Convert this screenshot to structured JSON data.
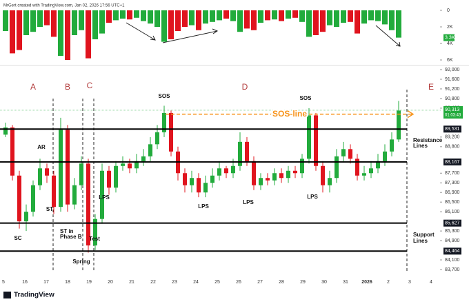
{
  "chart_data": {
    "type": "candlestick",
    "header": "MrGert created with TradingView.com, Jan 02, 2026 17:56 UTC+1",
    "brand": "TradingView",
    "up_color": "#22ab3c",
    "down_color": "#e0141e",
    "open": [
      89300,
      89600,
      87600,
      85700,
      86100,
      87200,
      87900,
      87600,
      86300,
      89500,
      86400,
      87200,
      88100,
      84700,
      85800,
      87800,
      87100,
      88000,
      88100,
      87900,
      88200,
      88400,
      88900,
      89400,
      90200,
      88600,
      87700,
      87200,
      87500,
      86900,
      87300,
      87600,
      87900,
      87700,
      88000,
      89000,
      88200,
      87200,
      87500,
      87400,
      87700,
      87500,
      87800,
      87700,
      88300,
      90100,
      88000,
      87200,
      87500,
      88400,
      88700,
      88300,
      87600,
      87700,
      87900,
      88200,
      88600,
      89100
    ],
    "high": [
      89800,
      89700,
      87800,
      86400,
      87400,
      88300,
      88100,
      87800,
      90000,
      89700,
      87500,
      88400,
      88300,
      86000,
      88100,
      88000,
      88200,
      88400,
      88300,
      88500,
      88700,
      89200,
      89700,
      90500,
      90300,
      88800,
      87900,
      87800,
      87700,
      87600,
      87900,
      88200,
      88000,
      88300,
      89400,
      89200,
      88400,
      87700,
      87700,
      87900,
      87900,
      88000,
      88000,
      88500,
      90400,
      90200,
      88200,
      87800,
      88700,
      89000,
      88900,
      88500,
      88000,
      88200,
      88500,
      88900,
      89400,
      90700
    ],
    "low": [
      89200,
      87400,
      85400,
      85300,
      85900,
      87000,
      87300,
      86000,
      86100,
      86100,
      86200,
      87000,
      84400,
      84500,
      85600,
      86800,
      86900,
      87800,
      87700,
      87700,
      88000,
      88200,
      88700,
      89200,
      88400,
      87400,
      86900,
      86900,
      86700,
      86700,
      87100,
      87400,
      87500,
      87500,
      87800,
      88000,
      87000,
      87000,
      87200,
      87200,
      87300,
      87300,
      87500,
      87500,
      88100,
      87800,
      86900,
      86900,
      87300,
      88200,
      88100,
      87400,
      87400,
      87500,
      87700,
      88000,
      88400,
      89000
    ],
    "close": [
      89600,
      87600,
      85700,
      86100,
      87200,
      87900,
      87600,
      86300,
      89500,
      86400,
      87200,
      88100,
      84700,
      85800,
      87800,
      87100,
      88000,
      88100,
      87900,
      88200,
      88400,
      88900,
      89400,
      90200,
      88600,
      87700,
      87200,
      87500,
      86900,
      87300,
      87600,
      87900,
      87700,
      88000,
      89000,
      88200,
      87200,
      87500,
      87400,
      87700,
      87500,
      87800,
      87700,
      88300,
      90100,
      88000,
      87200,
      87500,
      88400,
      88700,
      88300,
      87600,
      87700,
      87900,
      88200,
      88600,
      89100,
      90300
    ],
    "volume": [
      2500,
      5200,
      4800,
      3000,
      2600,
      2000,
      1800,
      3200,
      5500,
      6000,
      3000,
      2400,
      5800,
      3500,
      2800,
      1500,
      1200,
      1000,
      1100,
      900,
      1300,
      1600,
      2000,
      3800,
      3500,
      2500,
      2000,
      1800,
      2400,
      1600,
      1400,
      1200,
      1000,
      1300,
      2600,
      2200,
      2400,
      1500,
      1200,
      1100,
      1300,
      1000,
      900,
      1400,
      3200,
      3000,
      2600,
      1800,
      2000,
      1500,
      1400,
      2800,
      1600,
      1200,
      1300,
      1700,
      2400,
      3300
    ],
    "volume_ylim": [
      0,
      6000
    ],
    "volume_yticks": [
      0,
      {
        "value": 2000,
        "label": "2K"
      },
      {
        "value": 4000,
        "label": "4K"
      },
      {
        "value": 6000,
        "label": "6K"
      }
    ],
    "volume_last": {
      "value": 3300,
      "label": "3.3K"
    },
    "ylim": [
      83700,
      92000
    ],
    "yticks": [
      {
        "value": 92000,
        "label": "92,000"
      },
      {
        "value": 91600,
        "label": "91,600"
      },
      {
        "value": 91200,
        "label": "91,200"
      },
      {
        "value": 90800,
        "label": "90,800"
      },
      {
        "value": 90400,
        "label": "90,400"
      },
      {
        "value": 89200,
        "label": "89,200"
      },
      {
        "value": 88800,
        "label": "88,800"
      },
      {
        "value": 87700,
        "label": "87,700"
      },
      {
        "value": 87300,
        "label": "87,300"
      },
      {
        "value": 86900,
        "label": "86,900"
      },
      {
        "value": 86500,
        "label": "86,500"
      },
      {
        "value": 86100,
        "label": "86,100"
      },
      {
        "value": 85300,
        "label": "85,300"
      },
      {
        "value": 84900,
        "label": "84,900"
      },
      {
        "value": 84100,
        "label": "84,100"
      },
      {
        "value": 83700,
        "label": "83,700"
      }
    ],
    "last_price": {
      "value": 90313,
      "label": "90,313",
      "countdown": "01:03:43"
    },
    "levels": [
      {
        "value": 89531,
        "label": "89,531"
      },
      {
        "value": 88167,
        "label": "88,167"
      },
      {
        "value": 85627,
        "label": "85,627"
      },
      {
        "value": 84464,
        "label": "84,464"
      }
    ],
    "sos_line": {
      "value": 90150,
      "label": "SOS-line"
    },
    "x_labels": [
      "5",
      "16",
      "17",
      "18",
      "19",
      "20",
      "21",
      "22",
      "23",
      "24",
      "25",
      "26",
      "27",
      "28",
      "29",
      "30",
      "31",
      "2026",
      "2",
      "3",
      "4"
    ],
    "phases": [
      "A",
      "B",
      "C",
      "D",
      "E"
    ],
    "annotations": [
      "SOS",
      "SOS",
      "AR",
      "ST",
      "SC",
      "ST in",
      "Phase B",
      "Spring",
      "Test",
      "LPS",
      "LPS",
      "LPS",
      "LPS",
      "Resistance",
      "Lines",
      "Support",
      "Lines"
    ]
  }
}
